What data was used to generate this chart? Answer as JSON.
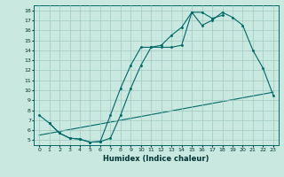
{
  "title": "",
  "xlabel": "Humidex (Indice chaleur)",
  "bg_color": "#c8e8e0",
  "line_color": "#006868",
  "grid_color": "#a0c8c0",
  "xlim": [
    -0.5,
    23.5
  ],
  "ylim": [
    4.5,
    18.5
  ],
  "xticks": [
    0,
    1,
    2,
    3,
    4,
    5,
    6,
    7,
    8,
    9,
    10,
    11,
    12,
    13,
    14,
    15,
    16,
    17,
    18,
    19,
    20,
    21,
    22,
    23
  ],
  "yticks": [
    5,
    6,
    7,
    8,
    9,
    10,
    11,
    12,
    13,
    14,
    15,
    16,
    17,
    18
  ],
  "line1_x": [
    0,
    1,
    2,
    3,
    4,
    5,
    6,
    7,
    8,
    9,
    10,
    11,
    12,
    13,
    14,
    15,
    16,
    17,
    18,
    19,
    20,
    21,
    22,
    23
  ],
  "line1_y": [
    7.5,
    6.7,
    5.7,
    5.2,
    5.1,
    4.8,
    4.85,
    5.2,
    7.5,
    10.2,
    12.5,
    14.3,
    14.3,
    14.3,
    14.5,
    17.8,
    16.5,
    17.0,
    17.8,
    17.3,
    16.5,
    14.0,
    12.2,
    9.5
  ],
  "line2_x": [
    1,
    2,
    3,
    4,
    5,
    6,
    7,
    8,
    9,
    10,
    11,
    12,
    13,
    14,
    15,
    16,
    17,
    18
  ],
  "line2_y": [
    6.7,
    5.7,
    5.2,
    5.1,
    4.8,
    4.85,
    7.5,
    10.2,
    12.5,
    14.3,
    14.3,
    14.5,
    15.5,
    16.3,
    17.8,
    17.8,
    17.2,
    17.5
  ],
  "line3_x": [
    0,
    23
  ],
  "line3_y": [
    5.5,
    9.8
  ]
}
